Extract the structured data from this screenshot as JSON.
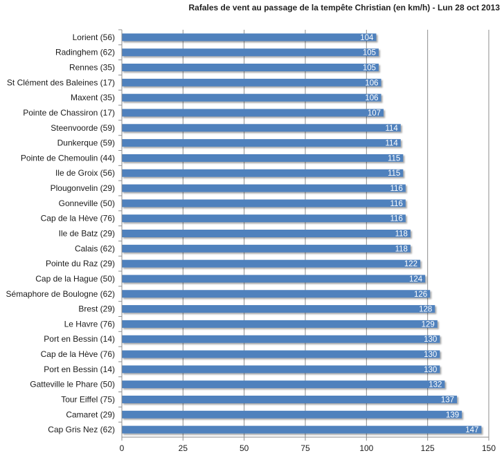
{
  "chart_data": {
    "type": "bar",
    "orientation": "horizontal",
    "title": "Rafales  de vent au passage  de la tempête Christian  (en km/h) - Lun 28 oct 2013",
    "xlabel": "",
    "ylabel": "",
    "xlim": [
      0,
      150
    ],
    "x_ticks": [
      0,
      25,
      50,
      75,
      100,
      125,
      150
    ],
    "grid": "vertical",
    "legend": "none",
    "bar_color": "#4f81bd",
    "categories": [
      "Lorient (56)",
      "Radinghem (62)",
      "Rennes (35)",
      "St Clément des Baleines (17)",
      "Maxent (35)",
      "Pointe de Chassiron (17)",
      "Steenvoorde (59)",
      "Dunkerque (59)",
      "Pointe de Chemoulin (44)",
      "Ile de Groix (56)",
      "Plougonvelin (29)",
      "Gonneville (50)",
      "Cap de la Hève (76)",
      "Ile de Batz (29)",
      "Calais (62)",
      "Pointe du Raz (29)",
      "Cap de la Hague (50)",
      "Sémaphore de Boulogne (62)",
      "Brest (29)",
      "Le Havre (76)",
      "Port en Bessin (14)",
      "Cap de la Hève (76)",
      "Port en Bessin (14)",
      "Gatteville le Phare (50)",
      "Tour Eiffel (75)",
      "Camaret (29)",
      "Cap Gris Nez (62)"
    ],
    "values": [
      104,
      105,
      105,
      106,
      106,
      107,
      114,
      114,
      115,
      115,
      116,
      116,
      116,
      118,
      118,
      122,
      124,
      126,
      128,
      129,
      130,
      130,
      130,
      132,
      137,
      139,
      147
    ]
  }
}
